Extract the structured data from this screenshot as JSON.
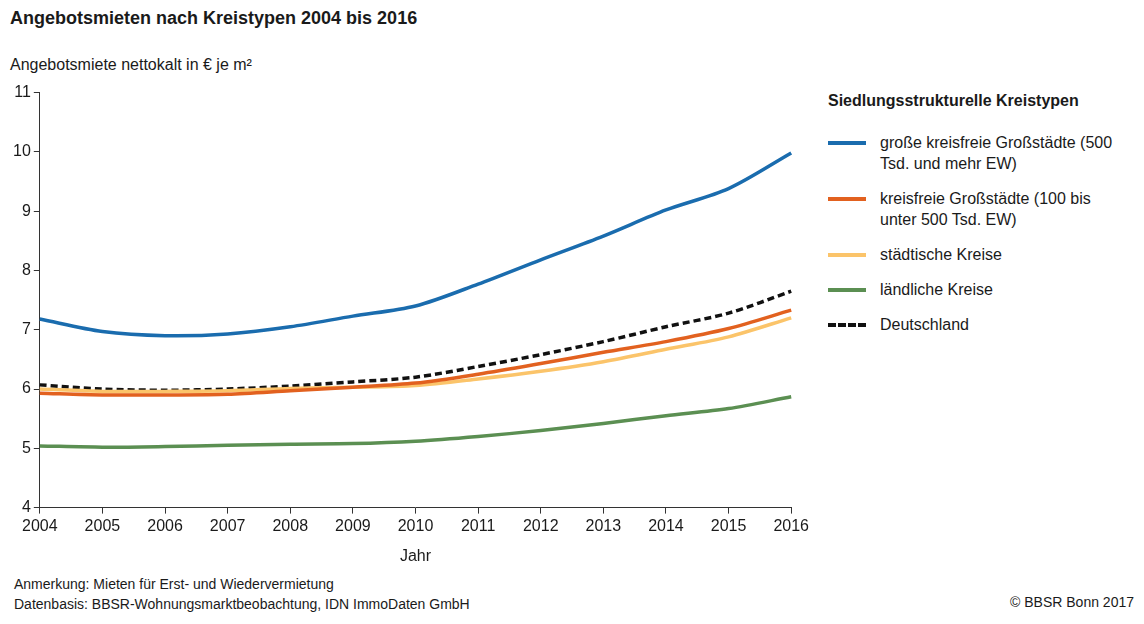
{
  "chart_data": {
    "type": "line",
    "title": "Angebotsmieten nach Kreistypen 2004 bis 2016",
    "y_label": "Angebotsmiete nettokalt in € je m²",
    "x_label": "Jahr",
    "legend_title": "Siedlungsstrukturelle Kreistypen",
    "legend": "right",
    "grid": false,
    "notes": [
      "Anmerkung: Mieten für Erst- und Wiedervermietung",
      "Datenbasis: BBSR-Wohnungsmarktbeobachtung, IDN ImmoDaten GmbH"
    ],
    "copyright": "© BBSR Bonn 2017",
    "categories": [
      "2004",
      "2005",
      "2006",
      "2007",
      "2008",
      "2009",
      "2010",
      "2011",
      "2012",
      "2013",
      "2014",
      "2015",
      "2016"
    ],
    "ylim": [
      4,
      11
    ],
    "yticks": [
      4,
      5,
      6,
      7,
      8,
      9,
      10,
      11
    ],
    "series": [
      {
        "name": "große kreisfreie Großstädte (500 Tsd. und mehr EW)",
        "color": "#1a6cae",
        "line_style": "solid",
        "values": [
          7.18,
          6.97,
          6.9,
          6.93,
          7.05,
          7.23,
          7.4,
          7.77,
          8.18,
          8.58,
          9.02,
          9.38,
          9.98
        ]
      },
      {
        "name": "kreisfreie Großstädte (100 bis unter 500 Tsd. EW)",
        "color": "#e2611f",
        "line_style": "solid",
        "values": [
          5.93,
          5.9,
          5.9,
          5.91,
          5.97,
          6.03,
          6.1,
          6.25,
          6.43,
          6.62,
          6.8,
          7.02,
          7.33
        ]
      },
      {
        "name": "städtische Kreise",
        "color": "#fbc46a",
        "line_style": "solid",
        "values": [
          6.0,
          5.96,
          5.96,
          5.97,
          6.01,
          6.03,
          6.06,
          6.17,
          6.3,
          6.46,
          6.67,
          6.88,
          7.2
        ]
      },
      {
        "name": "ländliche Kreise",
        "color": "#5b8f52",
        "line_style": "solid",
        "values": [
          5.04,
          5.02,
          5.03,
          5.05,
          5.07,
          5.08,
          5.12,
          5.2,
          5.3,
          5.42,
          5.55,
          5.67,
          5.87
        ]
      },
      {
        "name": "Deutschland",
        "color": "#111111",
        "line_style": "dashed",
        "values": [
          6.07,
          6.0,
          5.98,
          6.0,
          6.05,
          6.12,
          6.2,
          6.38,
          6.58,
          6.8,
          7.05,
          7.28,
          7.65
        ]
      }
    ]
  }
}
